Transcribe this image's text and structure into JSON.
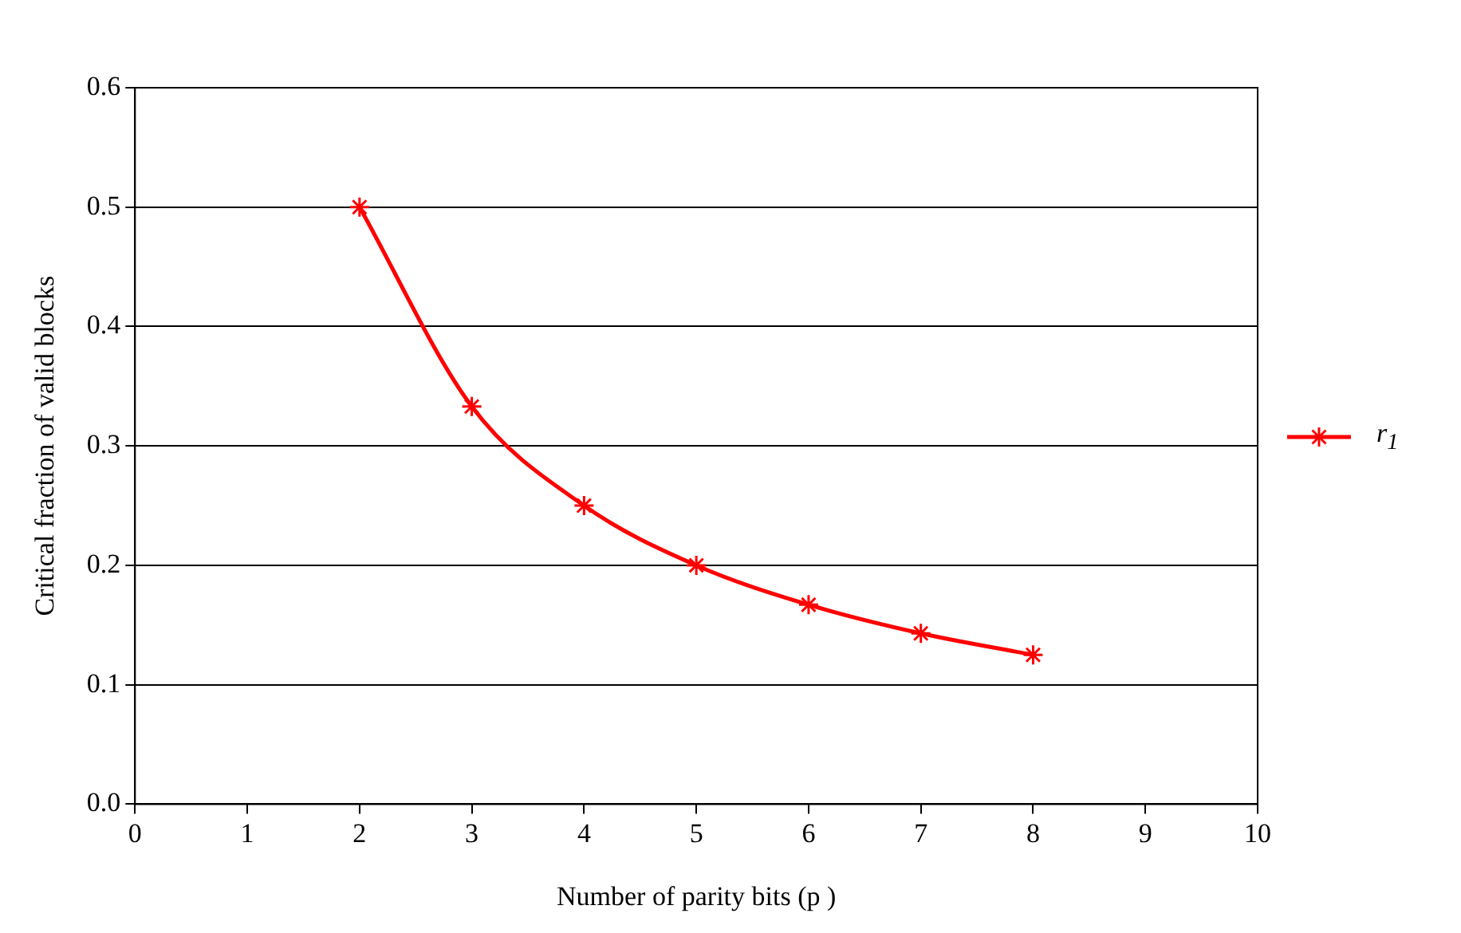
{
  "chart_data": {
    "type": "line",
    "xlabel": "Number of parity bits (p )",
    "ylabel": "Critical fraction of valid blocks",
    "x": [
      2,
      3,
      4,
      5,
      6,
      7,
      8
    ],
    "series": [
      {
        "name": "r$_{1}$",
        "color": "#ff0000",
        "values": [
          0.5,
          0.333,
          0.25,
          0.2,
          0.167,
          0.143,
          0.125
        ]
      }
    ],
    "xlim": [
      0,
      10
    ],
    "xticks": [
      0,
      1,
      2,
      3,
      4,
      5,
      6,
      7,
      8,
      9,
      10
    ],
    "ylim": [
      0,
      0.6
    ],
    "yticks": [
      {
        "value": 0,
        "label": "0.0"
      },
      {
        "value": 0.1,
        "label": "0.1"
      },
      {
        "value": 0.2,
        "label": "0.2"
      },
      {
        "value": 0.3,
        "label": "0.3"
      },
      {
        "value": 0.4,
        "label": "0.4"
      },
      {
        "value": 0.5,
        "label": "0.5"
      },
      {
        "value": 0.6,
        "label": "0.6"
      }
    ],
    "grid": "y",
    "legend": "right",
    "marker": "cross",
    "line_style": "solid"
  }
}
